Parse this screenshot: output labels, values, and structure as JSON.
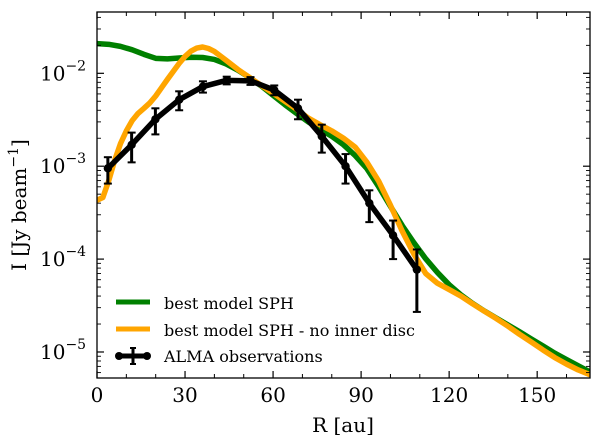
{
  "chart_data": {
    "type": "line",
    "xlabel": "R [au]",
    "ylabel": "I [Jy beam",
    "ylabel_sup": "−1",
    "ylabel_close": "]",
    "xlim": [
      0,
      168
    ],
    "ylim_log10": [
      -5.28,
      -1.34
    ],
    "y_scale": "log",
    "x_ticks": [
      0,
      30,
      60,
      90,
      120,
      150
    ],
    "x_tick_labels": [
      "0",
      "30",
      "60",
      "90",
      "120",
      "150"
    ],
    "y_ticks_log10": [
      -5,
      -4,
      -3,
      -2
    ],
    "y_tick_label_base": "10",
    "y_tick_label_exponents": [
      "−5",
      "−4",
      "−3",
      "−2"
    ],
    "legend_position": "lower-left",
    "series": [
      {
        "name": "best model SPH",
        "color": "#008000",
        "style": "line",
        "x": [
          0,
          4,
          8,
          12,
          16,
          20,
          24,
          28,
          32,
          36,
          40,
          44,
          48,
          52,
          56,
          60,
          64,
          68,
          72,
          76,
          80,
          84,
          88,
          92,
          96,
          100,
          104,
          108,
          112,
          116,
          120,
          124,
          128,
          132,
          136,
          140,
          144,
          148,
          152,
          156,
          160,
          164,
          168
        ],
        "y": [
          0.0209,
          0.0205,
          0.0195,
          0.0179,
          0.016,
          0.0145,
          0.0143,
          0.0146,
          0.0149,
          0.0148,
          0.0141,
          0.0126,
          0.0108,
          0.009,
          0.0073,
          0.0058,
          0.0046,
          0.0037,
          0.003,
          0.0025,
          0.0021,
          0.0017,
          0.0013,
          0.00094,
          0.0006,
          0.00037,
          0.00023,
          0.00015,
          0.000101,
          7.18e-05,
          5.3e-05,
          4.12e-05,
          3.33e-05,
          2.76e-05,
          2.32e-05,
          1.96e-05,
          1.65e-05,
          1.38e-05,
          1.16e-05,
          9.7e-06,
          8.3e-06,
          7.1e-06,
          6.1e-06
        ]
      },
      {
        "name": "best model SPH - no inner disc",
        "color": "#FFA500",
        "style": "line",
        "x": [
          0,
          2,
          4,
          6,
          8,
          10,
          12,
          14,
          16,
          18,
          20,
          22,
          24,
          26,
          28,
          30,
          32,
          34,
          36,
          38,
          40,
          44,
          48,
          52,
          56,
          60,
          64,
          68,
          72,
          76,
          80,
          84,
          88,
          92,
          96,
          100,
          104,
          108,
          112,
          116,
          120,
          124,
          128,
          132,
          136,
          140,
          144,
          148,
          152,
          156,
          160,
          164,
          168
        ],
        "y": [
          0.00043,
          0.00046,
          0.0007,
          0.00115,
          0.00175,
          0.0024,
          0.0031,
          0.0037,
          0.0042,
          0.0048,
          0.0057,
          0.007,
          0.0086,
          0.0105,
          0.0128,
          0.0152,
          0.0173,
          0.0187,
          0.0192,
          0.0185,
          0.0172,
          0.0138,
          0.011,
          0.009,
          0.0074,
          0.0061,
          0.005,
          0.0041,
          0.0033,
          0.0028,
          0.0024,
          0.002,
          0.0016,
          0.0011,
          0.00069,
          0.00038,
          0.0002,
          0.000113,
          7e-05,
          5.5e-05,
          4.7e-05,
          4e-05,
          3.3e-05,
          2.75e-05,
          2.3e-05,
          1.9e-05,
          1.55e-05,
          1.28e-05,
          1.05e-05,
          8.7e-06,
          7.4e-06,
          6.4e-06,
          5.7e-06
        ]
      },
      {
        "name": "ALMA observations",
        "color": "#000000",
        "style": "errorbar",
        "x": [
          3.7,
          11.8,
          19.9,
          28.0,
          36.1,
          44.2,
          52.3,
          60.4,
          68.5,
          76.6,
          84.7,
          92.8,
          100.9,
          109.0
        ],
        "y": [
          0.00095,
          0.0017,
          0.0032,
          0.0052,
          0.0072,
          0.0084,
          0.0083,
          0.0066,
          0.0042,
          0.0021,
          0.001,
          0.0004,
          0.00018,
          7.7e-05
        ],
        "err": [
          0.0003,
          0.0006,
          0.001,
          0.0012,
          0.001,
          0.0008,
          0.0008,
          0.0008,
          0.001,
          0.0007,
          0.00035,
          0.00015,
          8e-05,
          5e-05
        ]
      }
    ]
  }
}
